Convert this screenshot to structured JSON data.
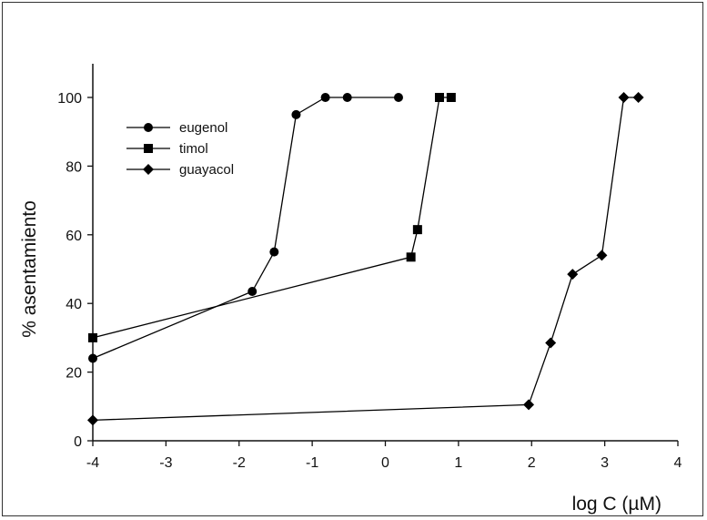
{
  "chart_data": {
    "type": "line",
    "title": "",
    "xlabel": "log C (µM)",
    "ylabel": "% asentamiento",
    "xlim": [
      -4,
      4
    ],
    "ylim": [
      0,
      110
    ],
    "xticks": [
      -4,
      -3,
      -2,
      -1,
      0,
      1,
      2,
      3,
      4
    ],
    "yticks": [
      0,
      20,
      40,
      60,
      80,
      100
    ],
    "grid": false,
    "legend": "top-left",
    "series": [
      {
        "name": "eugenol",
        "marker": "circle",
        "color": "#000000",
        "points": [
          [
            -4,
            24
          ],
          [
            -1.82,
            43.5
          ],
          [
            -1.52,
            55
          ],
          [
            -1.22,
            95
          ],
          [
            -0.82,
            100
          ],
          [
            -0.52,
            100
          ],
          [
            0.18,
            100
          ]
        ]
      },
      {
        "name": "timol",
        "marker": "square",
        "color": "#000000",
        "points": [
          [
            -4,
            30
          ],
          [
            0.35,
            53.5
          ],
          [
            0.44,
            61.5
          ],
          [
            0.74,
            100
          ],
          [
            0.9,
            100
          ]
        ]
      },
      {
        "name": "guayacol",
        "marker": "diamond",
        "color": "#000000",
        "points": [
          [
            -4,
            6
          ],
          [
            1.96,
            10.5
          ],
          [
            2.26,
            28.5
          ],
          [
            2.56,
            48.5
          ],
          [
            2.96,
            54
          ],
          [
            3.26,
            100
          ],
          [
            3.46,
            100
          ]
        ]
      }
    ]
  }
}
